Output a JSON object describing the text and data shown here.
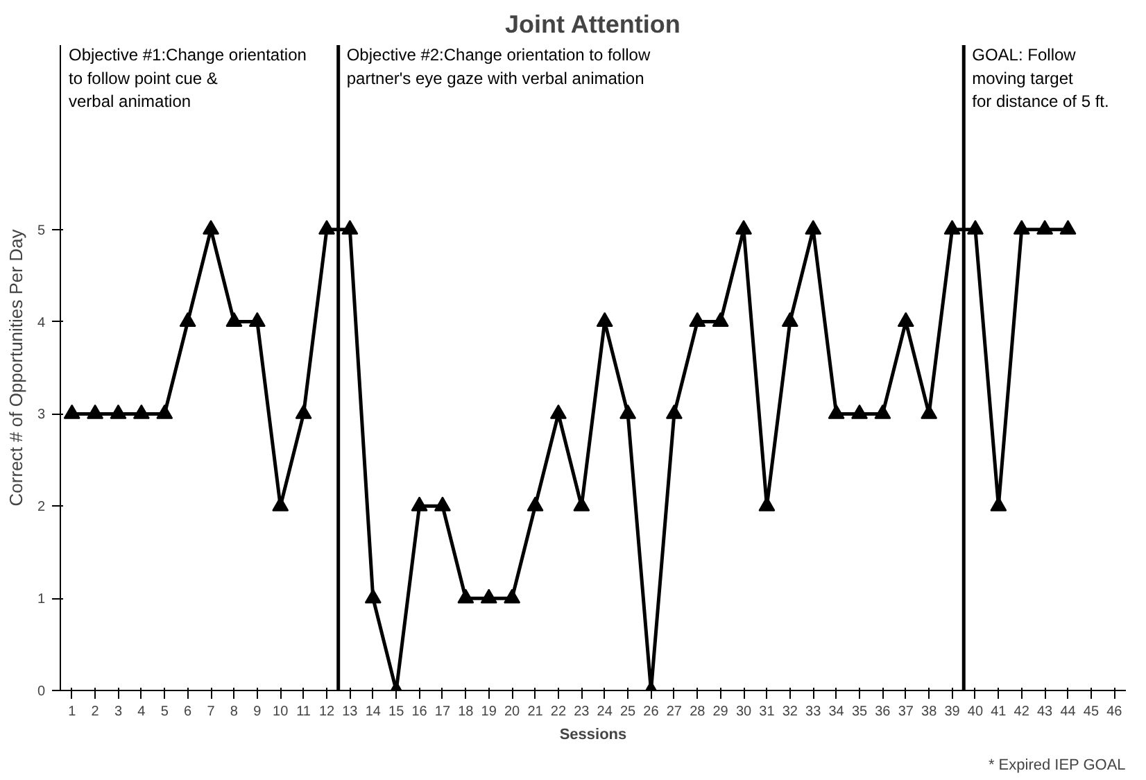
{
  "chart_data": {
    "type": "line",
    "title": "Joint Attention",
    "xlabel": "Sessions",
    "ylabel": "Correct # of Opportunities Per Day",
    "x": [
      1,
      2,
      3,
      4,
      5,
      6,
      7,
      8,
      9,
      10,
      11,
      12,
      13,
      14,
      15,
      16,
      17,
      18,
      19,
      20,
      21,
      22,
      23,
      24,
      25,
      26,
      27,
      28,
      29,
      30,
      31,
      32,
      33,
      34,
      35,
      36,
      37,
      38,
      39,
      40,
      41,
      42,
      43,
      44
    ],
    "series": [
      {
        "color": "#000000",
        "values": [
          3,
          3,
          3,
          3,
          3,
          4,
          5,
          4,
          4,
          2,
          3,
          5,
          5,
          1,
          0,
          2,
          2,
          1,
          1,
          1,
          2,
          3,
          2,
          4,
          3,
          0,
          3,
          4,
          4,
          5,
          2,
          4,
          5,
          3,
          3,
          3,
          4,
          3,
          5,
          5,
          2,
          5,
          5,
          5
        ]
      }
    ],
    "xlim": [
      0.5,
      46.5
    ],
    "xticks": [
      1,
      2,
      3,
      4,
      5,
      6,
      7,
      8,
      9,
      10,
      11,
      12,
      13,
      14,
      15,
      16,
      17,
      18,
      19,
      20,
      21,
      22,
      23,
      24,
      25,
      26,
      27,
      28,
      29,
      30,
      31,
      32,
      33,
      34,
      35,
      36,
      37,
      38,
      39,
      40,
      41,
      42,
      43,
      44,
      45,
      46
    ],
    "ylim": [
      0,
      7
    ],
    "yticks": [
      0,
      1,
      2,
      3,
      4,
      5
    ],
    "ref_lines": [
      {
        "axis": "x",
        "value": 12.5,
        "color": "#000000"
      },
      {
        "axis": "x",
        "value": 39.5,
        "color": "#000000"
      }
    ],
    "annotations": [
      "Objective #1:Change orientation\nto follow point cue &\n verbal animation",
      "Objective #2:Change orientation to follow\npartner's eye gaze with verbal animation",
      "GOAL:   Follow\nmoving target\nfor distance of 5 ft.",
      "* Expired IEP GOAL"
    ],
    "marker": "triangle",
    "line_style": "solid",
    "grid": false
  }
}
